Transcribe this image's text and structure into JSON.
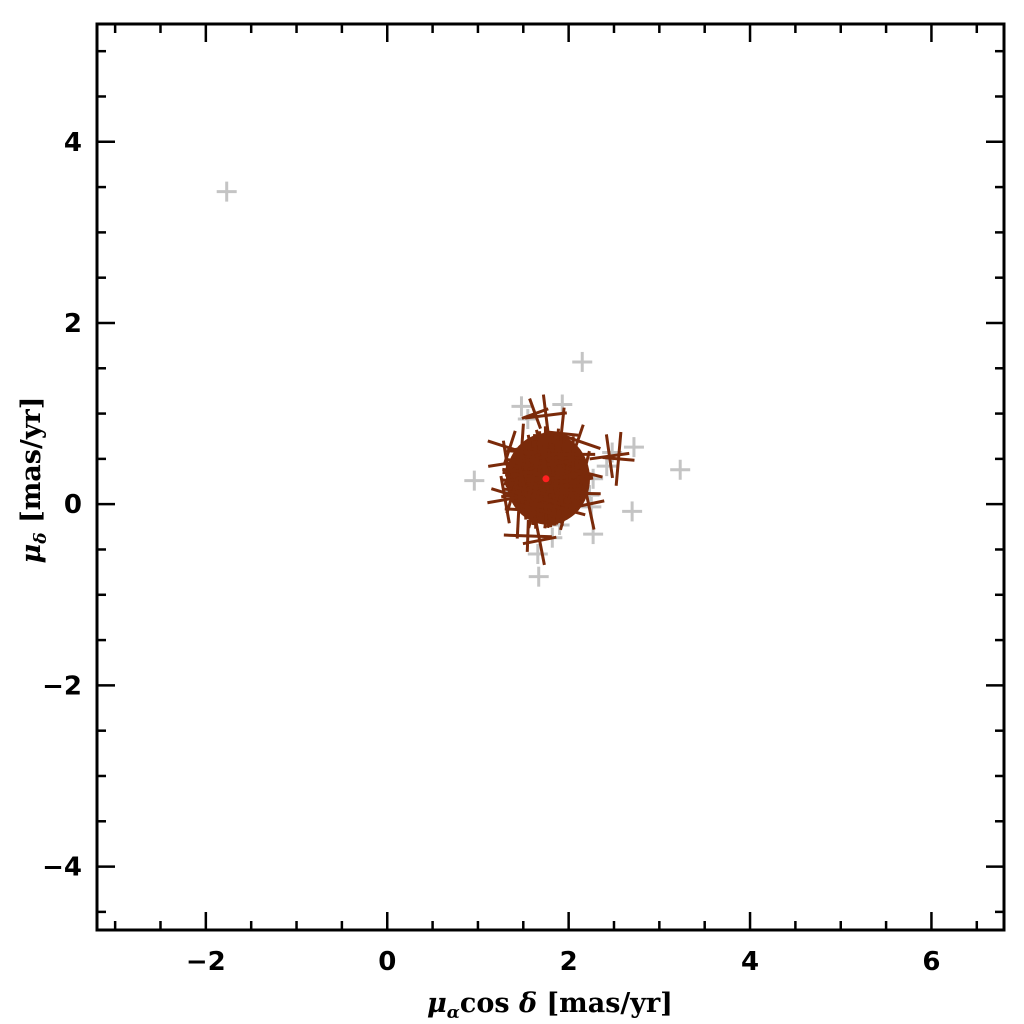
{
  "chart_data": {
    "type": "scatter",
    "xlabel": "μαcos δ [mas/yr]",
    "ylabel": "μδ [mas/yr]",
    "xlabel_parts": {
      "mu": "μ",
      "sub": "α",
      "mid": "cos ",
      "delta": "δ",
      "unit": " [mas/yr]"
    },
    "ylabel_parts": {
      "mu": "μ",
      "sub": "δ",
      "unit": " [mas/yr]"
    },
    "xlim": [
      -3.2,
      6.8
    ],
    "ylim": [
      -4.7,
      5.3
    ],
    "xticks": [
      -2,
      0,
      2,
      4,
      6
    ],
    "yticks": [
      -4,
      -2,
      0,
      2,
      4
    ],
    "xtick_labels": [
      "−2",
      "0",
      "2",
      "4",
      "6"
    ],
    "ytick_labels": [
      "−4",
      "−2",
      "0",
      "2",
      "4"
    ],
    "grid": false,
    "colors": {
      "members": "#7a2a0a",
      "field": "#c4c4c4",
      "center": "#ff2020",
      "axes": "#000000"
    },
    "cluster_center": {
      "x": 1.75,
      "y": 0.28
    },
    "field_stars": [
      {
        "x": -1.77,
        "y": 3.45
      },
      {
        "x": 2.15,
        "y": 1.57
      },
      {
        "x": 1.48,
        "y": 1.08
      },
      {
        "x": 1.93,
        "y": 1.1
      },
      {
        "x": 1.55,
        "y": 0.94
      },
      {
        "x": 2.72,
        "y": 0.63
      },
      {
        "x": 2.48,
        "y": 0.57
      },
      {
        "x": 3.23,
        "y": 0.38
      },
      {
        "x": 0.96,
        "y": 0.26
      },
      {
        "x": 2.27,
        "y": 0.28
      },
      {
        "x": 2.42,
        "y": 0.42
      },
      {
        "x": 2.23,
        "y": 0.1
      },
      {
        "x": 2.25,
        "y": -0.03
      },
      {
        "x": 2.7,
        "y": -0.08
      },
      {
        "x": 2.27,
        "y": -0.33
      },
      {
        "x": 1.9,
        "y": -0.23
      },
      {
        "x": 1.82,
        "y": -0.37
      },
      {
        "x": 1.67,
        "y": -0.8
      },
      {
        "x": 1.66,
        "y": -0.55
      },
      {
        "x": 1.4,
        "y": 0.13
      }
    ],
    "members": [
      {
        "x": 1.63,
        "y": 1.0
      },
      {
        "x": 1.75,
        "y": 0.98
      },
      {
        "x": 1.92,
        "y": 0.78
      },
      {
        "x": 2.1,
        "y": 0.7
      },
      {
        "x": 2.45,
        "y": 0.53
      },
      {
        "x": 2.55,
        "y": 0.5
      },
      {
        "x": 1.35,
        "y": 0.62
      },
      {
        "x": 1.32,
        "y": 0.45
      },
      {
        "x": 1.48,
        "y": 0.58
      },
      {
        "x": 1.38,
        "y": 0.1
      },
      {
        "x": 1.3,
        "y": 0.05
      },
      {
        "x": 1.45,
        "y": -0.06
      },
      {
        "x": 1.62,
        "y": -0.05
      },
      {
        "x": 1.68,
        "y": -0.4
      },
      {
        "x": 1.55,
        "y": -0.35
      },
      {
        "x": 1.97,
        "y": -0.06
      },
      {
        "x": 2.22,
        "y": 0.0
      },
      {
        "x": 2.1,
        "y": 0.12
      },
      {
        "x": 2.17,
        "y": 0.35
      },
      {
        "x": 1.48,
        "y": 0.33
      },
      {
        "x": 2.05,
        "y": 0.55
      },
      {
        "x": 1.58,
        "y": 0.15
      },
      {
        "x": 1.72,
        "y": 0.52
      },
      {
        "x": 1.92,
        "y": 0.2
      }
    ]
  }
}
